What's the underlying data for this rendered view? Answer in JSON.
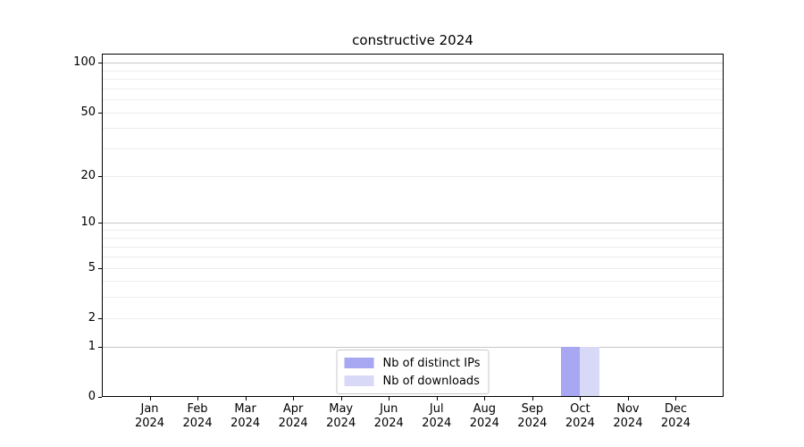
{
  "figure": {
    "background": "#ffffff",
    "title": "constructive 2024"
  },
  "chart_data": {
    "type": "bar",
    "title": "constructive 2024",
    "x": {
      "months": [
        "Jan",
        "Feb",
        "Mar",
        "Apr",
        "May",
        "Jun",
        "Jul",
        "Aug",
        "Sep",
        "Oct",
        "Nov",
        "Dec"
      ],
      "year": "2024"
    },
    "series": [
      {
        "name": "Nb of distinct IPs",
        "color": "#a7a7f2",
        "values": [
          0,
          0,
          0,
          0,
          0,
          0,
          0,
          0,
          0,
          1,
          0,
          0
        ]
      },
      {
        "name": "Nb of downloads",
        "color": "#d8d8f7",
        "values": [
          0,
          0,
          0,
          0,
          0,
          0,
          0,
          0,
          0,
          1,
          0,
          0
        ]
      }
    ],
    "yaxis": {
      "scale": "symlog",
      "ticks": [
        0,
        1,
        2,
        5,
        10,
        20,
        50,
        100
      ],
      "major_gridlines": [
        1,
        10,
        100
      ],
      "minor_gridlines": [
        2,
        3,
        4,
        5,
        6,
        7,
        8,
        9,
        20,
        30,
        40,
        50,
        60,
        70,
        80,
        90
      ],
      "ylim": [
        0,
        110
      ]
    },
    "legend": {
      "position": "lower center",
      "entries": [
        "Nb of distinct IPs",
        "Nb of downloads"
      ]
    },
    "grid": "horizontal"
  }
}
